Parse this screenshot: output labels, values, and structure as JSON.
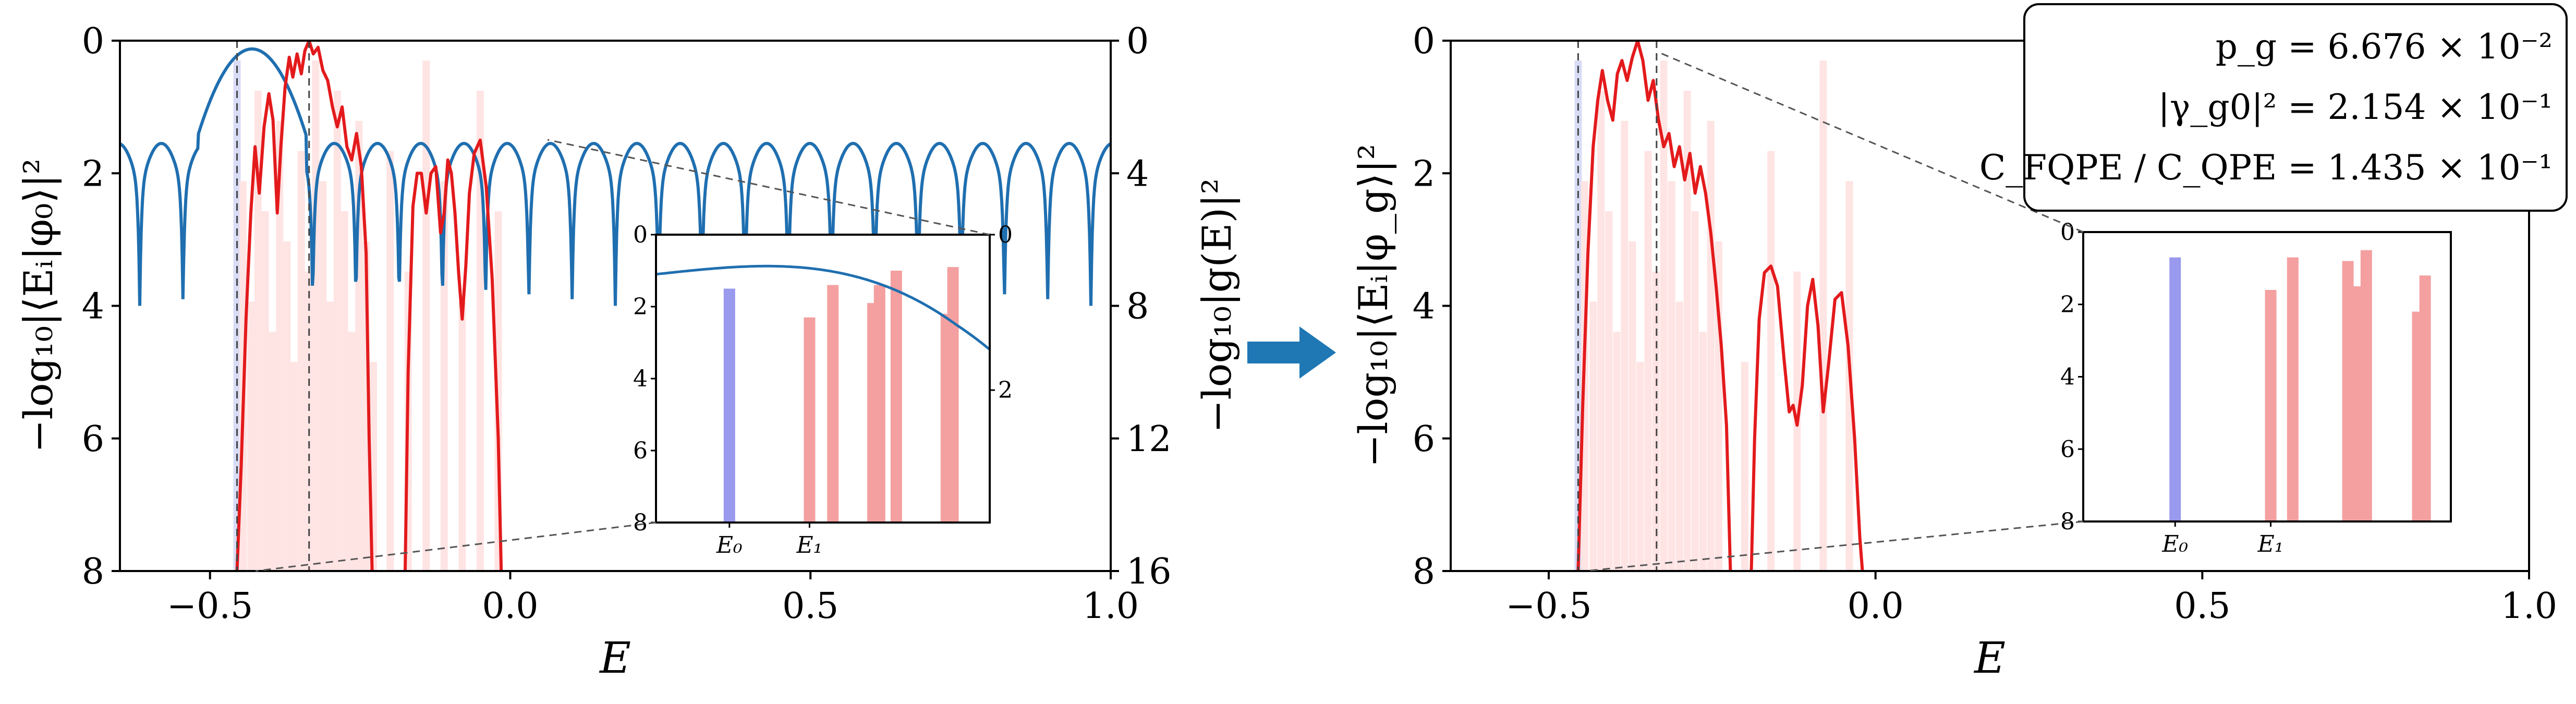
{
  "arrow_color": "#1f77b4",
  "chart_data": [
    {
      "type": "bar+line",
      "panel": "left",
      "xlabel": "E",
      "ylabel": "−log₁₀|⟨Eᵢ|φ₀⟩|²",
      "ylabel_right": "−log₁₀|g(E)|²",
      "xlim": [
        -0.65,
        1.0
      ],
      "ylim": [
        8,
        0
      ],
      "ylim_right": [
        16,
        0
      ],
      "xticks": [
        "−0.5",
        "0.0",
        "0.5",
        "1.0"
      ],
      "yticks": [
        "0",
        "2",
        "4",
        "6",
        "8"
      ],
      "yticks_right": [
        "0",
        "4",
        "8",
        "12",
        "16"
      ],
      "dashed_lines_x": [
        -0.455,
        -0.335
      ],
      "red_curve_color": "#e31a1c",
      "blue_curve_color": "#1f6fb0",
      "bar_color": "#ffb3b3",
      "red_curve": [
        [
          -0.455,
          8.0
        ],
        [
          -0.448,
          6.4
        ],
        [
          -0.44,
          4.2
        ],
        [
          -0.432,
          2.6
        ],
        [
          -0.425,
          1.6
        ],
        [
          -0.418,
          2.3
        ],
        [
          -0.41,
          1.3
        ],
        [
          -0.402,
          0.8
        ],
        [
          -0.395,
          1.2
        ],
        [
          -0.388,
          2.6
        ],
        [
          -0.382,
          1.6
        ],
        [
          -0.375,
          0.7
        ],
        [
          -0.368,
          0.25
        ],
        [
          -0.362,
          0.55
        ],
        [
          -0.355,
          0.2
        ],
        [
          -0.348,
          0.5
        ],
        [
          -0.342,
          0.15
        ],
        [
          -0.335,
          0.0
        ],
        [
          -0.328,
          0.2
        ],
        [
          -0.32,
          0.1
        ],
        [
          -0.312,
          0.45
        ],
        [
          -0.304,
          0.6
        ],
        [
          -0.296,
          1.0
        ],
        [
          -0.288,
          1.3
        ],
        [
          -0.28,
          1.0
        ],
        [
          -0.272,
          1.6
        ],
        [
          -0.264,
          1.8
        ],
        [
          -0.256,
          1.4
        ],
        [
          -0.248,
          1.9
        ],
        [
          -0.24,
          3.2
        ],
        [
          -0.235,
          6.0
        ],
        [
          -0.23,
          8.0
        ]
      ],
      "red_curve_b": [
        [
          -0.175,
          8.0
        ],
        [
          -0.17,
          5.0
        ],
        [
          -0.162,
          2.5
        ],
        [
          -0.155,
          2.0
        ],
        [
          -0.148,
          2.0
        ],
        [
          -0.14,
          2.6
        ],
        [
          -0.132,
          2.0
        ],
        [
          -0.124,
          1.9
        ],
        [
          -0.116,
          2.9
        ],
        [
          -0.11,
          2.6
        ],
        [
          -0.104,
          1.8
        ],
        [
          -0.098,
          2.0
        ],
        [
          -0.092,
          2.6
        ],
        [
          -0.086,
          3.5
        ],
        [
          -0.08,
          4.2
        ],
        [
          -0.074,
          3.4
        ],
        [
          -0.068,
          2.3
        ],
        [
          -0.06,
          1.7
        ],
        [
          -0.05,
          1.5
        ],
        [
          -0.04,
          2.2
        ],
        [
          -0.03,
          3.6
        ],
        [
          -0.02,
          6.0
        ],
        [
          -0.015,
          8.0
        ]
      ],
      "blue_curve": {
        "peak_E": -0.43,
        "peak_val": 0.25,
        "first_zero": -0.545,
        "period": 0.072,
        "amplitude_center": 4.4,
        "cusp_depth": 6.0
      },
      "bars_E": [
        -0.455,
        -0.445,
        -0.432,
        -0.42,
        -0.408,
        -0.396,
        -0.384,
        -0.372,
        -0.36,
        -0.348,
        -0.336,
        -0.324,
        -0.312,
        -0.3,
        -0.288,
        -0.276,
        -0.264,
        -0.252,
        -0.24,
        -0.228,
        -0.2,
        -0.17,
        -0.14,
        -0.11,
        -0.08,
        -0.05,
        -0.02
      ],
      "inset": {
        "xticks": [
          "E₀",
          "E₁"
        ],
        "yticks": [
          "0",
          "2",
          "4",
          "6",
          "8"
        ],
        "yticks_right": [
          "0",
          "2"
        ],
        "ylim": [
          8,
          0
        ],
        "bars": [
          {
            "x": 0.22,
            "value": 1.5,
            "color": "#9999ee"
          },
          {
            "x": 0.46,
            "value": 2.3,
            "color": "#f4a0a0"
          },
          {
            "x": 0.53,
            "value": 1.4,
            "color": "#f4a0a0"
          },
          {
            "x": 0.65,
            "value": 1.9,
            "color": "#f4a0a0"
          },
          {
            "x": 0.67,
            "value": 1.4,
            "color": "#f4a0a0"
          },
          {
            "x": 0.72,
            "value": 1.0,
            "color": "#f4a0a0"
          },
          {
            "x": 0.87,
            "value": 2.2,
            "color": "#f4a0a0"
          },
          {
            "x": 0.89,
            "value": 0.9,
            "color": "#f4a0a0"
          }
        ]
      }
    },
    {
      "type": "bar+line",
      "panel": "right",
      "xlabel": "E",
      "ylabel": "−log₁₀|⟨Eᵢ|φ_g⟩|²",
      "xlim": [
        -0.65,
        1.0
      ],
      "ylim": [
        8,
        0
      ],
      "xticks": [
        "−0.5",
        "0.0",
        "0.5",
        "1.0"
      ],
      "yticks": [
        "0",
        "2",
        "4",
        "6",
        "8"
      ],
      "dashed_lines_x": [
        -0.455,
        -0.335
      ],
      "red_curve_color": "#e31a1c",
      "red_curve": [
        [
          -0.455,
          8.0
        ],
        [
          -0.448,
          5.5
        ],
        [
          -0.44,
          3.2
        ],
        [
          -0.432,
          1.6
        ],
        [
          -0.425,
          0.9
        ],
        [
          -0.418,
          0.45
        ],
        [
          -0.41,
          0.9
        ],
        [
          -0.402,
          1.2
        ],
        [
          -0.395,
          0.5
        ],
        [
          -0.388,
          0.3
        ],
        [
          -0.38,
          0.6
        ],
        [
          -0.372,
          0.25
        ],
        [
          -0.364,
          0.0
        ],
        [
          -0.356,
          0.3
        ],
        [
          -0.348,
          0.9
        ],
        [
          -0.34,
          0.6
        ],
        [
          -0.332,
          1.2
        ],
        [
          -0.324,
          1.6
        ],
        [
          -0.316,
          1.4
        ],
        [
          -0.308,
          1.9
        ],
        [
          -0.3,
          1.6
        ],
        [
          -0.292,
          2.1
        ],
        [
          -0.284,
          1.7
        ],
        [
          -0.276,
          2.3
        ],
        [
          -0.268,
          1.9
        ],
        [
          -0.26,
          2.3
        ],
        [
          -0.252,
          2.9
        ],
        [
          -0.244,
          3.7
        ],
        [
          -0.236,
          4.6
        ],
        [
          -0.228,
          5.8
        ],
        [
          -0.222,
          8.0
        ]
      ],
      "red_curve_b": [
        [
          -0.19,
          8.0
        ],
        [
          -0.185,
          6.0
        ],
        [
          -0.178,
          4.2
        ],
        [
          -0.17,
          3.5
        ],
        [
          -0.16,
          3.4
        ],
        [
          -0.15,
          3.7
        ],
        [
          -0.14,
          4.8
        ],
        [
          -0.132,
          5.6
        ],
        [
          -0.126,
          5.5
        ],
        [
          -0.12,
          5.8
        ],
        [
          -0.112,
          5.2
        ],
        [
          -0.104,
          4.0
        ],
        [
          -0.096,
          3.6
        ],
        [
          -0.088,
          4.3
        ],
        [
          -0.08,
          5.6
        ],
        [
          -0.072,
          4.9
        ],
        [
          -0.062,
          3.9
        ],
        [
          -0.052,
          3.8
        ],
        [
          -0.042,
          4.6
        ],
        [
          -0.032,
          6.0
        ],
        [
          -0.024,
          7.5
        ],
        [
          -0.02,
          8.0
        ]
      ],
      "bars_E": [
        -0.455,
        -0.445,
        -0.432,
        -0.42,
        -0.408,
        -0.396,
        -0.384,
        -0.372,
        -0.36,
        -0.348,
        -0.336,
        -0.324,
        -0.312,
        -0.3,
        -0.288,
        -0.276,
        -0.264,
        -0.252,
        -0.24,
        -0.2,
        -0.16,
        -0.12,
        -0.08,
        -0.04
      ],
      "stats_box": {
        "line1": "p_g = 6.676 × 10⁻²",
        "line2": "|γ_g0|² = 2.154 × 10⁻¹",
        "line3": "C_FQPE / C_QPE = 1.435 × 10⁻¹"
      },
      "inset": {
        "xticks": [
          "E₀",
          "E₁"
        ],
        "yticks": [
          "0",
          "2",
          "4",
          "6",
          "8"
        ],
        "ylim": [
          8,
          0
        ],
        "bars": [
          {
            "x": 0.25,
            "value": 0.7,
            "color": "#9999ee"
          },
          {
            "x": 0.51,
            "value": 1.6,
            "color": "#f4a0a0"
          },
          {
            "x": 0.57,
            "value": 0.7,
            "color": "#f4a0a0"
          },
          {
            "x": 0.72,
            "value": 0.8,
            "color": "#f4a0a0"
          },
          {
            "x": 0.74,
            "value": 1.5,
            "color": "#f4a0a0"
          },
          {
            "x": 0.77,
            "value": 0.5,
            "color": "#f4a0a0"
          },
          {
            "x": 0.91,
            "value": 2.2,
            "color": "#f4a0a0"
          },
          {
            "x": 0.93,
            "value": 1.2,
            "color": "#f4a0a0"
          }
        ]
      }
    }
  ]
}
